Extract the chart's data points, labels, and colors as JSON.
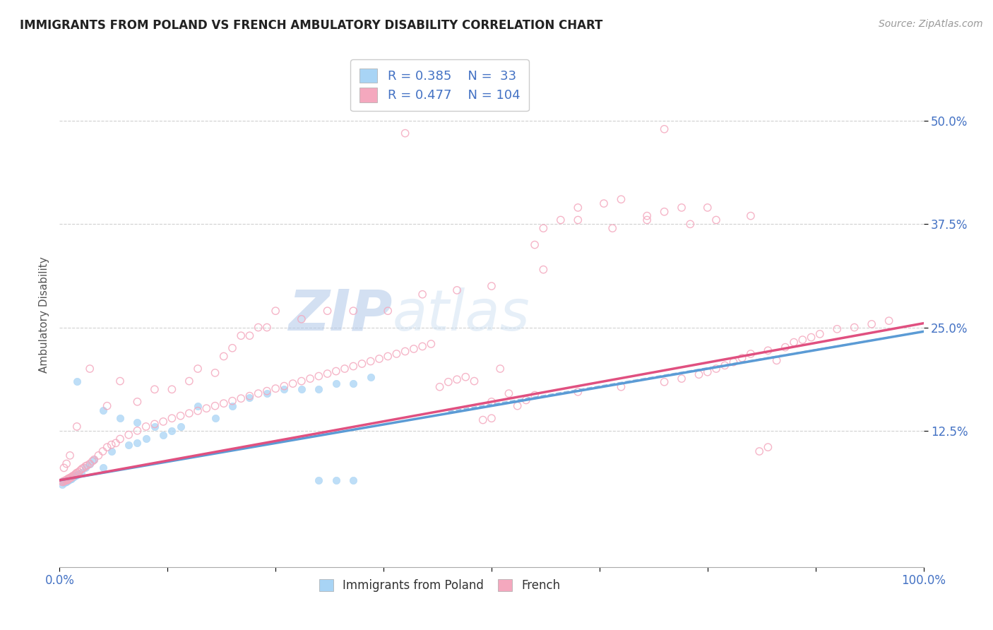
{
  "title": "IMMIGRANTS FROM POLAND VS FRENCH AMBULATORY DISABILITY CORRELATION CHART",
  "source": "Source: ZipAtlas.com",
  "ylabel": "Ambulatory Disability",
  "legend_entries": [
    {
      "label": "Immigrants from Poland",
      "R": "0.385",
      "N": "33",
      "dot_color": "#a8d4f5",
      "line_color": "#5b9bd5"
    },
    {
      "label": "French",
      "R": "0.477",
      "N": "104",
      "dot_color": "#f4a8be",
      "line_color": "#e05080"
    }
  ],
  "xlim": [
    0,
    1.0
  ],
  "ylim": [
    -0.04,
    0.57
  ],
  "watermark_text": "ZIPatlas",
  "background_color": "#ffffff",
  "grid_color": "#d0d0d0",
  "title_color": "#222222",
  "axis_label_color": "#555555",
  "tick_color": "#4472C4",
  "blue_line_x0": 0.0,
  "blue_line_x1": 1.0,
  "blue_line_y0": 0.065,
  "blue_line_y1": 0.245,
  "pink_line_x0": 0.0,
  "pink_line_x1": 1.0,
  "pink_line_y0": 0.065,
  "pink_line_y1": 0.255,
  "scatter_blue_x": [
    0.003,
    0.005,
    0.006,
    0.007,
    0.008,
    0.009,
    0.009,
    0.01,
    0.01,
    0.01,
    0.011,
    0.012,
    0.013,
    0.014,
    0.014,
    0.015,
    0.016,
    0.017,
    0.018,
    0.019,
    0.02,
    0.022,
    0.025,
    0.03,
    0.035,
    0.04,
    0.06,
    0.08,
    0.09,
    0.1,
    0.12,
    0.14,
    0.16,
    0.18,
    0.2,
    0.22,
    0.24,
    0.26,
    0.28,
    0.3,
    0.32,
    0.34,
    0.36
  ],
  "scatter_blue_y": [
    0.06,
    0.062,
    0.062,
    0.063,
    0.063,
    0.064,
    0.065,
    0.065,
    0.066,
    0.066,
    0.066,
    0.067,
    0.067,
    0.067,
    0.068,
    0.068,
    0.069,
    0.07,
    0.07,
    0.071,
    0.072,
    0.073,
    0.074,
    0.08,
    0.085,
    0.09,
    0.1,
    0.108,
    0.11,
    0.115,
    0.12,
    0.13,
    0.155,
    0.14,
    0.155,
    0.165,
    0.17,
    0.175,
    0.175,
    0.175,
    0.182,
    0.182,
    0.19
  ],
  "scatter_blue_outlier_x": [
    0.02,
    0.05,
    0.3,
    0.32,
    0.34,
    0.05,
    0.07,
    0.09,
    0.11,
    0.13
  ],
  "scatter_blue_outlier_y": [
    0.185,
    0.08,
    0.065,
    0.065,
    0.065,
    0.15,
    0.14,
    0.135,
    0.13,
    0.125
  ],
  "scatter_pink_x": [
    0.003,
    0.004,
    0.005,
    0.006,
    0.007,
    0.008,
    0.009,
    0.009,
    0.01,
    0.01,
    0.011,
    0.012,
    0.013,
    0.014,
    0.015,
    0.016,
    0.017,
    0.018,
    0.019,
    0.02,
    0.022,
    0.024,
    0.026,
    0.028,
    0.03,
    0.032,
    0.035,
    0.038,
    0.04,
    0.045,
    0.05,
    0.055,
    0.06,
    0.065,
    0.07,
    0.08,
    0.09,
    0.1,
    0.11,
    0.12,
    0.13,
    0.14,
    0.15,
    0.16,
    0.17,
    0.18,
    0.19,
    0.2,
    0.21,
    0.22,
    0.23,
    0.24,
    0.25,
    0.26,
    0.27,
    0.28,
    0.29,
    0.3,
    0.31,
    0.32,
    0.33,
    0.34,
    0.35,
    0.36,
    0.37,
    0.38,
    0.39,
    0.4,
    0.41,
    0.42,
    0.43,
    0.44,
    0.45,
    0.46,
    0.47,
    0.48,
    0.49,
    0.5,
    0.51,
    0.52,
    0.53,
    0.54,
    0.55,
    0.6,
    0.65,
    0.7,
    0.72,
    0.74,
    0.75,
    0.76,
    0.77,
    0.78,
    0.79,
    0.8,
    0.82,
    0.84,
    0.85,
    0.86,
    0.87,
    0.88,
    0.9,
    0.92,
    0.94,
    0.96
  ],
  "scatter_pink_y": [
    0.063,
    0.063,
    0.064,
    0.064,
    0.065,
    0.065,
    0.065,
    0.066,
    0.066,
    0.067,
    0.067,
    0.068,
    0.068,
    0.069,
    0.07,
    0.07,
    0.071,
    0.072,
    0.073,
    0.074,
    0.075,
    0.077,
    0.079,
    0.08,
    0.082,
    0.083,
    0.085,
    0.088,
    0.09,
    0.095,
    0.1,
    0.105,
    0.108,
    0.11,
    0.115,
    0.12,
    0.125,
    0.13,
    0.133,
    0.136,
    0.14,
    0.143,
    0.146,
    0.149,
    0.152,
    0.155,
    0.158,
    0.161,
    0.164,
    0.167,
    0.17,
    0.173,
    0.176,
    0.179,
    0.182,
    0.185,
    0.188,
    0.191,
    0.194,
    0.197,
    0.2,
    0.203,
    0.206,
    0.209,
    0.212,
    0.215,
    0.218,
    0.221,
    0.224,
    0.227,
    0.23,
    0.178,
    0.184,
    0.187,
    0.19,
    0.185,
    0.138,
    0.14,
    0.2,
    0.17,
    0.155,
    0.162,
    0.168,
    0.172,
    0.178,
    0.184,
    0.188,
    0.193,
    0.196,
    0.2,
    0.204,
    0.208,
    0.213,
    0.218,
    0.222,
    0.226,
    0.232,
    0.235,
    0.238,
    0.242,
    0.248,
    0.25,
    0.254,
    0.258
  ],
  "scatter_pink_outlier_x": [
    0.005,
    0.008,
    0.012,
    0.02,
    0.035,
    0.055,
    0.07,
    0.09,
    0.11,
    0.13,
    0.15,
    0.16,
    0.18,
    0.19,
    0.2,
    0.21,
    0.22,
    0.23,
    0.24,
    0.25,
    0.28,
    0.31,
    0.34,
    0.38,
    0.42,
    0.46,
    0.5,
    0.55,
    0.56,
    0.58,
    0.6,
    0.63,
    0.65,
    0.68,
    0.7,
    0.72,
    0.75,
    0.8,
    0.81,
    0.82,
    0.83
  ],
  "scatter_pink_outlier_y": [
    0.08,
    0.085,
    0.095,
    0.13,
    0.2,
    0.155,
    0.185,
    0.16,
    0.175,
    0.175,
    0.185,
    0.2,
    0.195,
    0.215,
    0.225,
    0.24,
    0.24,
    0.25,
    0.25,
    0.27,
    0.26,
    0.27,
    0.27,
    0.27,
    0.29,
    0.295,
    0.16,
    0.35,
    0.37,
    0.38,
    0.395,
    0.4,
    0.405,
    0.385,
    0.39,
    0.395,
    0.395,
    0.385,
    0.1,
    0.105,
    0.21
  ],
  "pink_extreme_x": [
    0.4,
    0.7,
    0.76,
    0.5,
    0.56,
    0.6,
    0.64,
    0.68,
    0.73
  ],
  "pink_extreme_y": [
    0.485,
    0.49,
    0.38,
    0.3,
    0.32,
    0.38,
    0.37,
    0.38,
    0.375
  ]
}
